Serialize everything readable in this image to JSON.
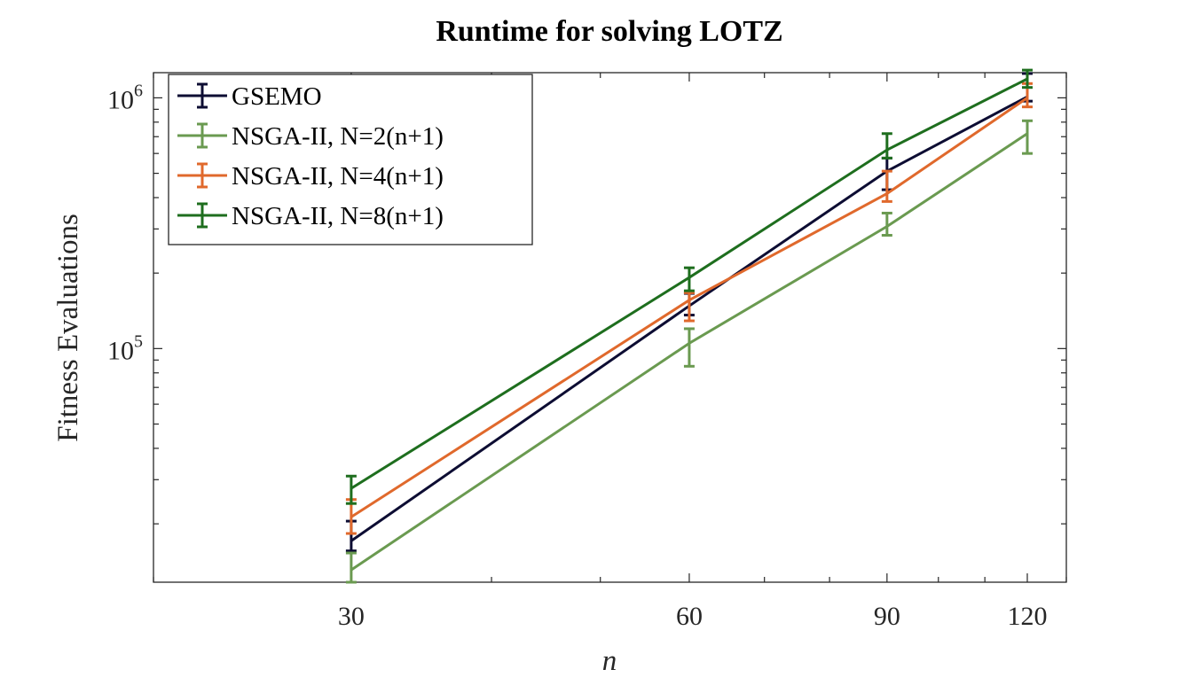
{
  "chart_data": {
    "type": "line",
    "title": "Runtime for solving LOTZ",
    "xlabel": "n",
    "ylabel": "Fitness Evaluations",
    "xscale": "log",
    "yscale": "log",
    "xlim": [
      20,
      130
    ],
    "ylim": [
      11700,
      1260000
    ],
    "x": [
      30,
      60,
      90,
      120
    ],
    "xtick_labels": [
      "30",
      "60",
      "90",
      "120"
    ],
    "ytick_labels": [
      {
        "base": "10",
        "exp": "5",
        "value": 100000
      },
      {
        "base": "10",
        "exp": "6",
        "value": 1000000
      }
    ],
    "legend_position": "top-left",
    "grid": false,
    "series": [
      {
        "name": "GSEMO",
        "color": "#0d0d33",
        "values": [
          17100,
          148000,
          510000,
          1010000
        ],
        "lower": [
          15600,
          136000,
          430000,
          970000
        ],
        "upper": [
          20500,
          166000,
          575000,
          1250000
        ]
      },
      {
        "name": "NSGA-II, N=2(n+1)",
        "color": "#6a9a50",
        "values": [
          13100,
          105000,
          307000,
          720000
        ],
        "lower": [
          11700,
          85000,
          283000,
          600000
        ],
        "upper": [
          15300,
          120000,
          347000,
          810000
        ]
      },
      {
        "name": "NSGA-II, N=4(n+1)",
        "color": "#e0692c",
        "values": [
          21300,
          156000,
          415000,
          1000000
        ],
        "lower": [
          18300,
          129000,
          386000,
          920000
        ],
        "upper": [
          25000,
          167000,
          510000,
          1140000
        ]
      },
      {
        "name": "NSGA-II, N=8(n+1)",
        "color": "#1e6e1e",
        "values": [
          27700,
          192000,
          620000,
          1190000
        ],
        "lower": [
          24100,
          170000,
          575000,
          1100000
        ],
        "upper": [
          31000,
          210000,
          720000,
          1290000
        ]
      }
    ]
  }
}
